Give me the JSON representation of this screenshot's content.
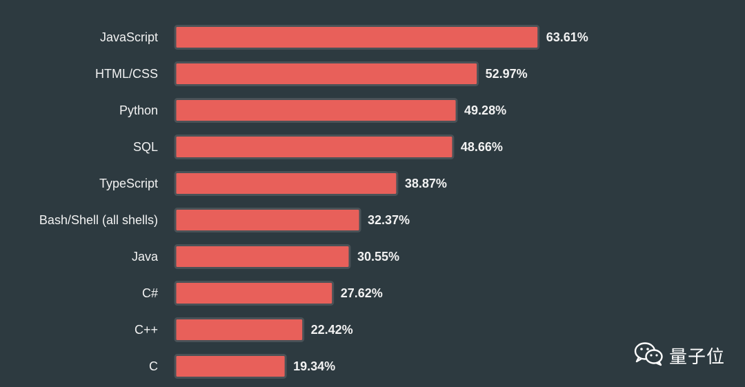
{
  "chart_data": {
    "type": "bar",
    "orientation": "horizontal",
    "title": "",
    "xlabel": "",
    "ylabel": "",
    "categories": [
      "JavaScript",
      "HTML/CSS",
      "Python",
      "SQL",
      "TypeScript",
      "Bash/Shell (all shells)",
      "Java",
      "C#",
      "C++",
      "C"
    ],
    "values": [
      63.61,
      52.97,
      49.28,
      48.66,
      38.87,
      32.37,
      30.55,
      27.62,
      22.42,
      19.34
    ],
    "value_labels": [
      "63.61%",
      "52.97%",
      "49.28%",
      "48.66%",
      "38.87%",
      "32.37%",
      "30.55%",
      "27.62%",
      "22.42%",
      "19.34%"
    ],
    "xlim": [
      0,
      100
    ],
    "grid": false,
    "legend": "none",
    "bar_color": "#e8605a"
  },
  "watermark": {
    "icon": "wechat-icon",
    "text": "量子位"
  },
  "colors": {
    "background": "#2d3a40",
    "bar": "#e8605a",
    "bar_border": "#4a5257",
    "text": "#f2f2f2"
  }
}
